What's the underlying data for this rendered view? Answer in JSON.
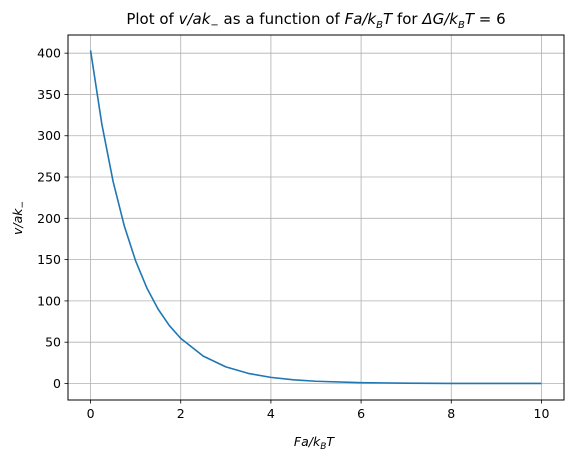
{
  "chart_data": {
    "type": "line",
    "title": {
      "prefix": "Plot of ",
      "ylab_main": "v/ak",
      "ylab_sub": "−",
      "mid": " as a function of ",
      "xlab_main": "Fa/k",
      "xlab_sub": "B",
      "xlab_tail": "T",
      "for": " for ",
      "dg_main": "ΔG/k",
      "dg_sub": "B",
      "dg_tail": "T",
      "eq": " = 6"
    },
    "xlabel": {
      "main": "Fa/k",
      "sub": "B",
      "tail": "T"
    },
    "ylabel": {
      "main": "v/ak",
      "sub": "−"
    },
    "xlim": [
      -0.5,
      10.5
    ],
    "ylim": [
      -20,
      422
    ],
    "xticks": [
      0,
      2,
      4,
      6,
      8,
      10
    ],
    "yticks": [
      0,
      50,
      100,
      150,
      200,
      250,
      300,
      350,
      400
    ],
    "grid": true,
    "series": [
      {
        "line_color": "#1f77b4",
        "x": [
          0,
          0.25,
          0.5,
          0.75,
          1.0,
          1.25,
          1.5,
          1.75,
          2.0,
          2.5,
          3.0,
          3.5,
          4.0,
          4.5,
          5.0,
          6.0,
          7.0,
          8.0,
          9.0,
          10.0
        ],
        "values": [
          403.4,
          314.2,
          244.7,
          190.5,
          148.4,
          115.5,
          89.9,
          70.0,
          54.6,
          33.1,
          20.1,
          12.2,
          7.4,
          4.5,
          2.7,
          1.0,
          0.4,
          0.1,
          0.05,
          0.02
        ]
      }
    ]
  }
}
